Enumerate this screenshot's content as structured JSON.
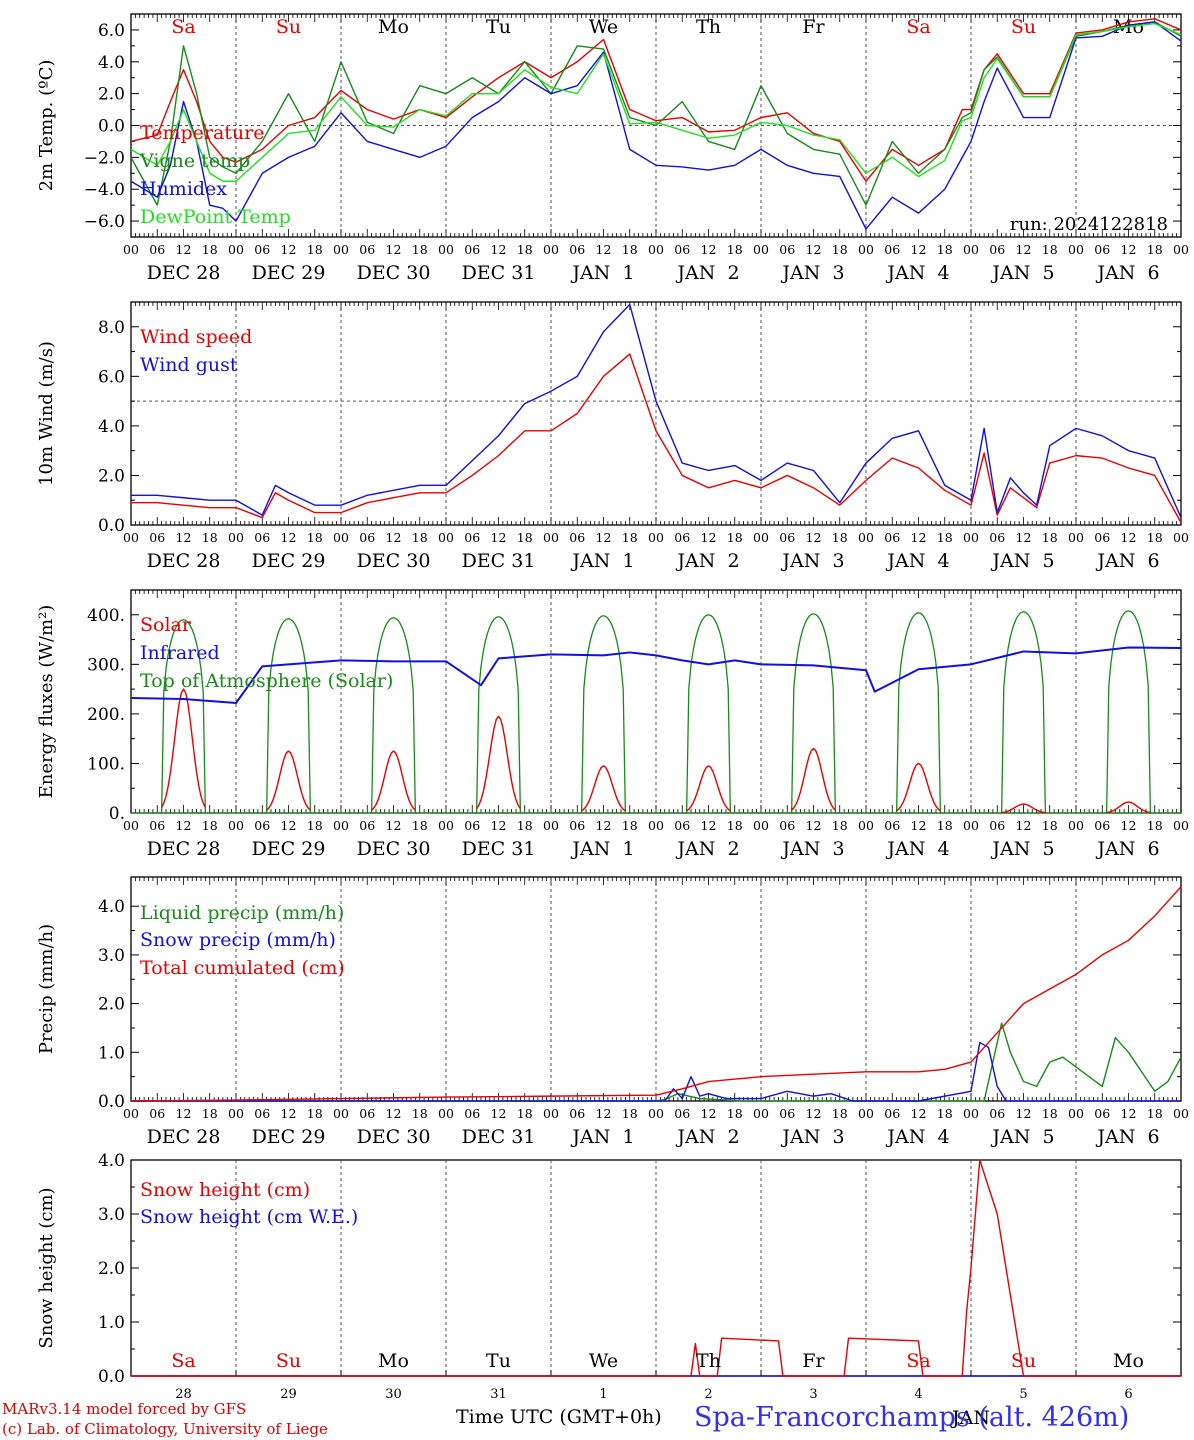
{
  "page": {
    "credit_line1": "MARv3.14 model forced by GFS",
    "credit_line2": "(c) Lab. of Climatology, University of Liege",
    "time_axis_label": "Time UTC (GMT+0h)",
    "station": "Spa-Francorchamps (alt. 426m)"
  },
  "axis": {
    "day_names": [
      "Sa",
      "Su",
      "Mo",
      "Tu",
      "We",
      "Th",
      "Fr",
      "Sa",
      "Su",
      "Mo"
    ],
    "weekend_days": [
      "Sa",
      "Su"
    ],
    "date_labels": [
      "DEC 28",
      "DEC 29",
      "DEC 30",
      "DEC 31",
      "JAN  1",
      "JAN  2",
      "JAN  3",
      "JAN  4",
      "JAN  5",
      "JAN  6"
    ],
    "hour_ticks": [
      "00",
      "06",
      "12",
      "18"
    ],
    "bottom_day_numbers": [
      "28",
      "29",
      "30",
      "31",
      "1",
      "2",
      "3",
      "4",
      "5",
      "6"
    ],
    "bottom_month": "JAN",
    "x_range_hours": [
      0,
      240
    ]
  },
  "colors": {
    "red": "#e80000",
    "green": "#1a8a1a",
    "blue": "#1010e0",
    "lightgreen": "#20e020",
    "grey_dash": "#555555"
  },
  "chart_data": [
    {
      "type": "line",
      "ylabel": "2m Temp. (ºC)",
      "ylim": [
        -7,
        7
      ],
      "yticks": [
        -6,
        -4,
        -2,
        0,
        2,
        4,
        6
      ],
      "ytick_labels": [
        "−6.0",
        "−4.0",
        "−2.0",
        "0.0",
        "2.0",
        "4.0",
        "6.0"
      ],
      "reference_line": 0,
      "run_label": "run: 2024122818",
      "x_hours": [
        0,
        6,
        9,
        12,
        15,
        18,
        21,
        24,
        30,
        36,
        42,
        48,
        54,
        60,
        66,
        72,
        78,
        84,
        90,
        96,
        102,
        108,
        114,
        120,
        126,
        132,
        138,
        144,
        150,
        156,
        162,
        168,
        174,
        180,
        186,
        190,
        192,
        195,
        198,
        204,
        210,
        216,
        222,
        228,
        234,
        240
      ],
      "series": [
        {
          "name": "Temperature",
          "color": "red",
          "values": [
            -1.0,
            -0.6,
            1.5,
            3.5,
            1.5,
            -1.0,
            -2.0,
            -2.3,
            -1.5,
            0.0,
            0.5,
            2.2,
            1.0,
            0.4,
            1.0,
            0.5,
            1.8,
            3.0,
            4.0,
            3.0,
            4.0,
            5.4,
            1.0,
            0.3,
            0.5,
            -0.4,
            -0.3,
            0.5,
            0.8,
            -0.5,
            -1.0,
            -3.5,
            -1.5,
            -2.5,
            -1.5,
            1.0,
            1.0,
            3.5,
            4.5,
            2.0,
            2.0,
            5.8,
            6.0,
            6.5,
            6.7,
            6.0
          ]
        },
        {
          "name": "Vigne temp",
          "color": "green",
          "values": [
            -2.0,
            -5.0,
            -1.0,
            5.0,
            2.0,
            -2.0,
            -2.6,
            -3.0,
            -1.0,
            2.0,
            -1.0,
            4.0,
            0.2,
            -0.5,
            2.5,
            2.0,
            3.0,
            2.0,
            4.0,
            2.0,
            5.0,
            4.8,
            0.5,
            0.0,
            1.5,
            -1.0,
            -1.5,
            2.5,
            -0.5,
            -1.5,
            -1.8,
            -5.0,
            -1.0,
            -3.0,
            -1.5,
            0.5,
            0.8,
            3.5,
            4.3,
            1.8,
            1.8,
            5.6,
            5.9,
            6.3,
            6.5,
            5.6
          ]
        },
        {
          "name": "Humidex",
          "color": "blue",
          "values": [
            -3.5,
            -4.5,
            -2.5,
            1.5,
            -1.0,
            -5.0,
            -5.2,
            -6.0,
            -3.0,
            -2.0,
            -1.3,
            0.8,
            -1.0,
            -1.5,
            -2.0,
            -1.3,
            0.5,
            1.5,
            3.0,
            2.0,
            2.5,
            4.6,
            -1.5,
            -2.5,
            -2.6,
            -2.8,
            -2.5,
            -1.5,
            -2.5,
            -3.0,
            -3.2,
            -6.5,
            -4.5,
            -5.5,
            -4.0,
            -2.0,
            -1.0,
            1.5,
            3.6,
            0.5,
            0.5,
            5.5,
            5.6,
            6.3,
            6.5,
            5.3
          ]
        },
        {
          "name": "DewPoint Temp",
          "color": "lightgreen",
          "values": [
            -1.5,
            -2.5,
            -1.0,
            1.0,
            -1.0,
            -3.0,
            -3.5,
            -3.5,
            -2.0,
            -0.5,
            -0.3,
            1.8,
            0.0,
            -0.1,
            1.0,
            0.6,
            2.0,
            2.0,
            3.5,
            2.4,
            2.0,
            4.5,
            0.1,
            0.2,
            -0.3,
            -0.8,
            -0.6,
            0.2,
            0.0,
            -0.6,
            -0.9,
            -3.0,
            -2.0,
            -3.2,
            -2.2,
            0.3,
            0.5,
            3.0,
            4.2,
            1.8,
            1.8,
            5.7,
            5.9,
            6.2,
            6.4,
            5.7
          ]
        }
      ]
    },
    {
      "type": "line",
      "ylabel": "10m Wind (m/s)",
      "ylim": [
        0,
        9
      ],
      "yticks": [
        0,
        2,
        4,
        6,
        8
      ],
      "ytick_labels": [
        "0.0",
        "2.0",
        "4.0",
        "6.0",
        "8.0"
      ],
      "reference_line": 5,
      "x_hours": [
        0,
        6,
        12,
        18,
        24,
        30,
        33,
        36,
        42,
        48,
        54,
        60,
        66,
        72,
        78,
        84,
        90,
        96,
        102,
        108,
        114,
        120,
        126,
        132,
        138,
        144,
        150,
        156,
        162,
        168,
        174,
        180,
        186,
        192,
        195,
        198,
        201,
        204,
        207,
        210,
        216,
        222,
        228,
        234,
        240
      ],
      "series": [
        {
          "name": "Wind speed",
          "color": "red",
          "values": [
            0.9,
            0.9,
            0.8,
            0.7,
            0.7,
            0.3,
            1.3,
            1.0,
            0.5,
            0.5,
            0.9,
            1.1,
            1.3,
            1.3,
            2.0,
            2.8,
            3.8,
            3.8,
            4.5,
            6.0,
            6.9,
            3.8,
            2.0,
            1.5,
            1.8,
            1.5,
            2.0,
            1.5,
            0.8,
            1.8,
            2.7,
            2.3,
            1.4,
            0.8,
            2.9,
            0.4,
            1.5,
            1.1,
            0.7,
            2.5,
            2.8,
            2.7,
            2.3,
            2.0,
            0.1
          ]
        },
        {
          "name": "Wind gust",
          "color": "blue",
          "values": [
            1.2,
            1.2,
            1.1,
            1.0,
            1.0,
            0.4,
            1.6,
            1.3,
            0.8,
            0.8,
            1.2,
            1.4,
            1.6,
            1.6,
            2.6,
            3.6,
            4.9,
            5.4,
            6.0,
            7.8,
            8.9,
            5.0,
            2.5,
            2.2,
            2.4,
            1.8,
            2.5,
            2.2,
            0.9,
            2.5,
            3.5,
            3.8,
            1.6,
            1.0,
            3.9,
            0.5,
            1.9,
            1.3,
            0.8,
            3.2,
            3.9,
            3.6,
            3.0,
            2.7,
            0.3
          ]
        }
      ]
    },
    {
      "type": "line",
      "ylabel": "Energy fluxes (W/m²)",
      "ylim": [
        0,
        450
      ],
      "yticks": [
        0,
        100,
        200,
        300,
        400
      ],
      "ytick_labels": [
        "0.",
        "100.",
        "200.",
        "300.",
        "400."
      ],
      "series": [
        {
          "name": "Solar",
          "color": "red",
          "peaks_day_index": [
            0,
            1,
            2,
            3,
            4,
            5,
            6,
            7,
            8,
            9
          ],
          "peak_values": [
            250,
            125,
            125,
            195,
            95,
            95,
            130,
            100,
            18,
            22
          ]
        },
        {
          "name": "Infrared",
          "color": "blue",
          "x_hours": [
            0,
            12,
            24,
            30,
            36,
            48,
            60,
            72,
            80,
            84,
            96,
            108,
            114,
            120,
            126,
            132,
            138,
            144,
            156,
            168,
            170,
            180,
            192,
            204,
            216,
            228,
            240
          ],
          "values": [
            232,
            230,
            222,
            296,
            300,
            308,
            306,
            306,
            258,
            312,
            320,
            318,
            324,
            318,
            308,
            300,
            308,
            300,
            298,
            288,
            245,
            290,
            300,
            326,
            322,
            334,
            333
          ]
        },
        {
          "name": "Top of Atmosphere (Solar)",
          "color": "green",
          "peaks_day_index": [
            0,
            1,
            2,
            3,
            4,
            5,
            6,
            7,
            8,
            9
          ],
          "peak_values": [
            390,
            392,
            394,
            396,
            398,
            400,
            402,
            404,
            406,
            408
          ]
        }
      ]
    },
    {
      "type": "line",
      "ylabel": "Precip (mm/h)",
      "ylim": [
        0,
        4.6
      ],
      "yticks": [
        0,
        1,
        2,
        3,
        4
      ],
      "ytick_labels": [
        "0.0",
        "1.0",
        "2.0",
        "3.0",
        "4.0"
      ],
      "series": [
        {
          "name": "Liquid precip (mm/h)",
          "color": "green",
          "x_hours": [
            0,
            120,
            122,
            125,
            130,
            140,
            180,
            195,
            199,
            201,
            204,
            207,
            210,
            213,
            216,
            219,
            222,
            225,
            228,
            231,
            234,
            237,
            240
          ],
          "values": [
            0,
            0,
            0.03,
            0.15,
            0.05,
            0,
            0,
            0,
            1.6,
            1.0,
            0.4,
            0.3,
            0.8,
            0.9,
            0.7,
            0.5,
            0.3,
            1.3,
            1.0,
            0.6,
            0.2,
            0.4,
            0.9
          ]
        },
        {
          "name": "Snow precip (mm/h)",
          "color": "blue",
          "x_hours": [
            0,
            122,
            124,
            126,
            128,
            130,
            132,
            136,
            144,
            150,
            156,
            160,
            165,
            180,
            192,
            194,
            196,
            198,
            200,
            240
          ],
          "values": [
            0,
            0,
            0.25,
            0.05,
            0.5,
            0.1,
            0.15,
            0.05,
            0.05,
            0.2,
            0.1,
            0.15,
            0,
            0,
            0.2,
            1.2,
            1.1,
            0.3,
            0,
            0
          ]
        },
        {
          "name": "Total cumulated (cm)",
          "color": "red",
          "x_hours": [
            0,
            24,
            48,
            72,
            96,
            120,
            126,
            132,
            144,
            156,
            168,
            180,
            186,
            192,
            196,
            200,
            204,
            210,
            216,
            222,
            228,
            234,
            240
          ],
          "values": [
            0,
            0.02,
            0.05,
            0.08,
            0.1,
            0.12,
            0.25,
            0.4,
            0.5,
            0.55,
            0.6,
            0.6,
            0.65,
            0.8,
            1.2,
            1.6,
            2.0,
            2.3,
            2.6,
            3.0,
            3.3,
            3.8,
            4.4
          ]
        }
      ]
    },
    {
      "type": "line",
      "ylabel": "Snow height (cm)",
      "ylim": [
        0,
        4
      ],
      "yticks": [
        0,
        1,
        2,
        3,
        4
      ],
      "ytick_labels": [
        "0.0",
        "1.0",
        "2.0",
        "3.0",
        "4.0"
      ],
      "series": [
        {
          "name": "Snow height (cm)",
          "color": "red",
          "x_hours": [
            0,
            120,
            128,
            129,
            130,
            134,
            135,
            148,
            149,
            150,
            156,
            163,
            164,
            180,
            181,
            190,
            191,
            192,
            194,
            196,
            198,
            200,
            202,
            204,
            205,
            240
          ],
          "values": [
            0,
            0,
            0,
            0.6,
            0,
            0,
            0.7,
            0.65,
            0,
            0,
            0,
            0,
            0.7,
            0.65,
            0,
            0,
            1.2,
            2.0,
            4.0,
            3.5,
            3.0,
            2.0,
            1.0,
            0,
            0,
            0
          ]
        },
        {
          "name": "Snow height (cm W.E.)",
          "color": "blue",
          "x_hours": [
            0,
            240
          ],
          "values": [
            0,
            0
          ]
        }
      ]
    }
  ]
}
